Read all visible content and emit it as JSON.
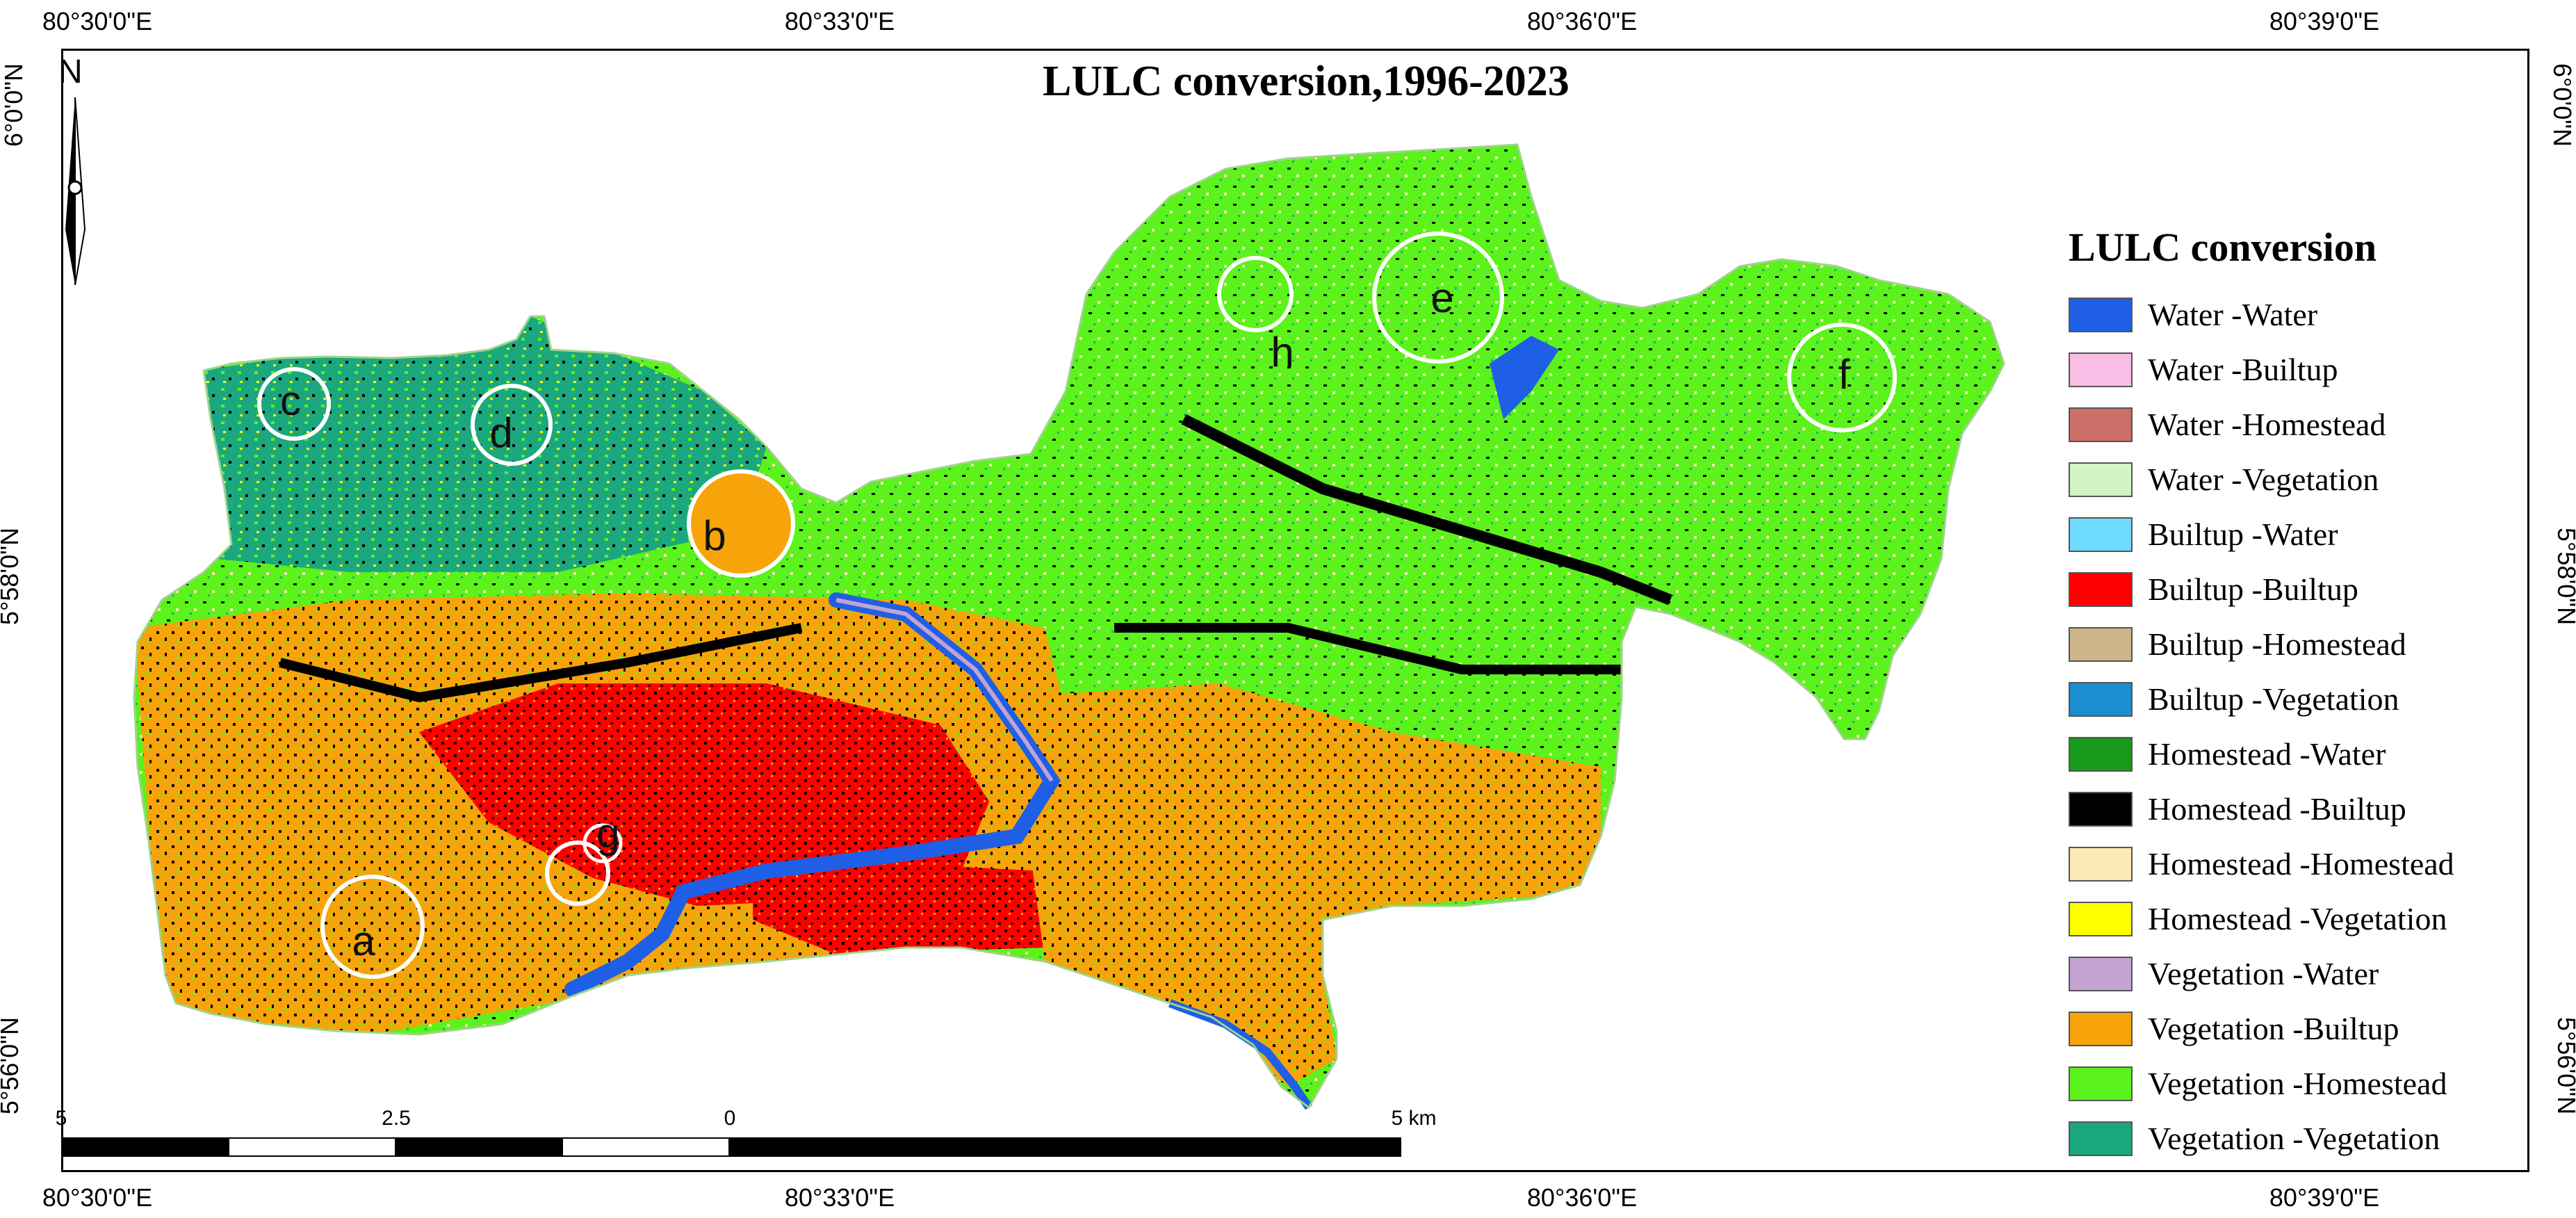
{
  "title": "LULC conversion,1996-2023",
  "coordinates": {
    "top": [
      "80°30'0\"E",
      "80°33'0\"E",
      "80°36'0\"E",
      "80°39'0\"E"
    ],
    "bottom": [
      "80°30'0\"E",
      "80°33'0\"E",
      "80°36'0\"E",
      "80°39'0\"E"
    ],
    "left": [
      "6°0'0\"N",
      "5°58'0\"N",
      "5°56'0\"N"
    ],
    "right": [
      "6°0'0\"N",
      "5°58'0\"N",
      "5°56'0\"N"
    ]
  },
  "north_arrow": {
    "label": "N"
  },
  "scale_bar": {
    "labels": [
      "5",
      "2.5",
      "0",
      "5 km"
    ]
  },
  "legend": {
    "title": "LULC conversion",
    "items": [
      {
        "label": "Water -Water",
        "color": "#1f5fe6"
      },
      {
        "label": "Water -Builtup",
        "color": "#f9bde6"
      },
      {
        "label": "Water -Homestead",
        "color": "#cc6e6a"
      },
      {
        "label": "Water -Vegetation",
        "color": "#d2f5c4"
      },
      {
        "label": "Builtup -Water",
        "color": "#6fdcff"
      },
      {
        "label": "Builtup -Builtup",
        "color": "#ff0000"
      },
      {
        "label": "Builtup -Homestead",
        "color": "#cdb68a"
      },
      {
        "label": "Builtup -Vegetation",
        "color": "#1b8fcf"
      },
      {
        "label": "Homestead -Water",
        "color": "#1a9a1a"
      },
      {
        "label": "Homestead -Builtup",
        "color": "#000000"
      },
      {
        "label": "Homestead -Homestead",
        "color": "#fde9b5"
      },
      {
        "label": "Homestead -Vegetation",
        "color": "#ffff00"
      },
      {
        "label": "Vegetation -Water",
        "color": "#c3a3d1"
      },
      {
        "label": "Vegetation -Builtup",
        "color": "#f7a40a"
      },
      {
        "label": "Vegetation -Homestead",
        "color": "#5cf21b"
      },
      {
        "label": "Vegetation -Vegetation",
        "color": "#1ba87e"
      }
    ]
  },
  "sites": [
    "a",
    "b",
    "c",
    "d",
    "e",
    "f",
    "g",
    "h"
  ]
}
